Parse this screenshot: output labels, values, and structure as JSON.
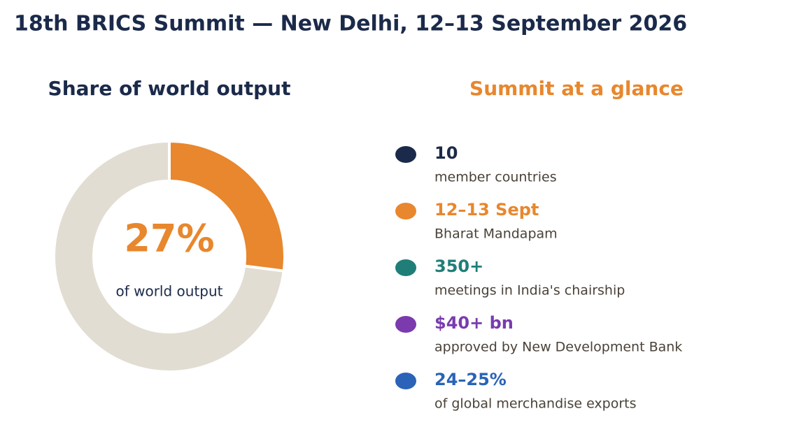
{
  "title": "18th BRICS Summit — New Delhi, 12–13 September 2026",
  "chart_data": {
    "type": "donut",
    "title": "Share of world output",
    "values": [
      27,
      73
    ],
    "colors": [
      "#e8872d",
      "#e2ddd2"
    ],
    "center_label": "27%",
    "center_sublabel": "of world output"
  },
  "glance": {
    "title": "Summit at a glance",
    "items": [
      {
        "value": "10",
        "label": "member countries",
        "color": "#1b2a4a"
      },
      {
        "value": "12–13 Sept",
        "label": "Bharat Mandapam",
        "color": "#e8872d"
      },
      {
        "value": "350+",
        "label": "meetings in India's chairship",
        "color": "#1f7f78"
      },
      {
        "value": "$40+ bn",
        "label": "approved by New Development Bank",
        "color": "#7b3aae"
      },
      {
        "value": "24–25%",
        "label": "of global merchandise exports",
        "color": "#2a63b8"
      }
    ]
  }
}
